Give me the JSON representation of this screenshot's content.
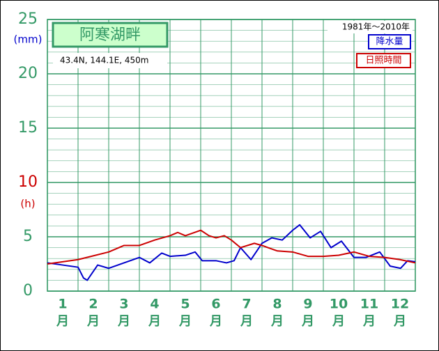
{
  "chart_data": {
    "type": "line",
    "title": "阿寒湖畔",
    "subtitle": "43.4N,  144.1E,  450m",
    "period": "1981年～2010年",
    "y_unit_labels": [
      {
        "text": "(mm)",
        "color": "#0000cc"
      },
      {
        "text": "(h)",
        "color": "#cc0000"
      }
    ],
    "xlim": [
      0,
      12
    ],
    "xticks": [
      {
        "value": 0.5,
        "label": "1"
      },
      {
        "value": 1.5,
        "label": "2"
      },
      {
        "value": 2.5,
        "label": "3"
      },
      {
        "value": 3.5,
        "label": "4"
      },
      {
        "value": 4.5,
        "label": "5"
      },
      {
        "value": 5.5,
        "label": "6"
      },
      {
        "value": 6.5,
        "label": "7"
      },
      {
        "value": 7.5,
        "label": "8"
      },
      {
        "value": 8.5,
        "label": "9"
      },
      {
        "value": 9.5,
        "label": "10"
      },
      {
        "value": 10.5,
        "label": "11"
      },
      {
        "value": 11.5,
        "label": "12"
      }
    ],
    "xtick_unit": "月",
    "xgrid_step": 1,
    "ylim": [
      0,
      25
    ],
    "yticks": [
      0,
      5,
      10,
      15,
      20,
      25
    ],
    "ytick_colors": [
      "#339966",
      "#339966",
      "#cc0000",
      "#339966",
      "#339966",
      "#339966"
    ],
    "minor_grid_step": 1,
    "grid": true,
    "series": [
      {
        "name": "降水量",
        "color": "#0000cc",
        "x": [
          0,
          0.5,
          1,
          1.18,
          1.3,
          1.64,
          2,
          2.5,
          3,
          3.34,
          3.73,
          4,
          4.5,
          4.82,
          5.05,
          5.5,
          5.84,
          6.09,
          6.3,
          6.64,
          7,
          7.32,
          7.66,
          8,
          8.23,
          8.57,
          8.91,
          9.25,
          9.59,
          10,
          10.39,
          10.84,
          11.18,
          11.52,
          11.75,
          12
        ],
        "values": [
          2.6,
          2.4,
          2.2,
          1.2,
          1.0,
          2.4,
          2.1,
          2.6,
          3.1,
          2.6,
          3.5,
          3.2,
          3.3,
          3.6,
          2.8,
          2.8,
          2.6,
          2.8,
          4.0,
          2.9,
          4.4,
          4.9,
          4.7,
          5.6,
          6.1,
          4.9,
          5.5,
          4.0,
          4.6,
          3.1,
          3.1,
          3.6,
          2.3,
          2.1,
          2.8,
          2.7
        ]
      },
      {
        "name": "日照時間",
        "color": "#cc0000",
        "x": [
          0,
          1,
          2,
          2.5,
          3,
          3.5,
          4,
          4.25,
          4.5,
          5,
          5.27,
          5.5,
          5.77,
          6,
          6.3,
          6.75,
          7,
          7.5,
          8,
          8.5,
          9,
          9.5,
          10,
          10.5,
          11,
          11.5,
          12
        ],
        "values": [
          2.5,
          2.9,
          3.6,
          4.2,
          4.2,
          4.7,
          5.1,
          5.4,
          5.1,
          5.6,
          5.1,
          4.9,
          5.1,
          4.7,
          4.0,
          4.4,
          4.2,
          3.7,
          3.6,
          3.2,
          3.2,
          3.3,
          3.6,
          3.2,
          3.1,
          2.9,
          2.6
        ]
      }
    ]
  }
}
